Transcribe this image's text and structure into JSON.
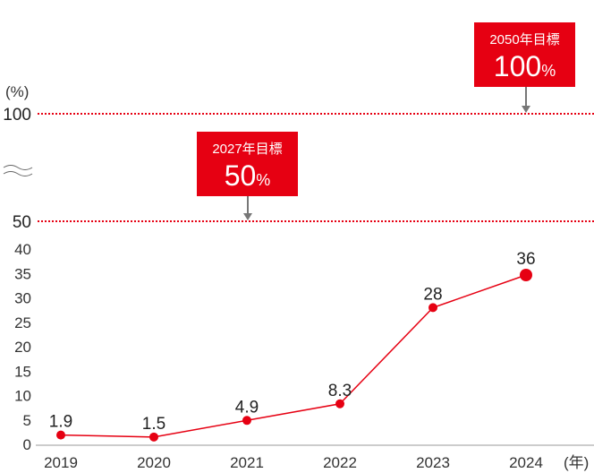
{
  "chart_data": {
    "type": "line",
    "ylabel": "(%)",
    "xlabel": "(年)",
    "categories": [
      "2019",
      "2020",
      "2021",
      "2022",
      "2023",
      "2024"
    ],
    "values": [
      1.9,
      1.5,
      4.9,
      8.3,
      28,
      36
    ],
    "data_labels": [
      "1.9",
      "1.5",
      "4.9",
      "8.3",
      "28",
      "36"
    ],
    "yticks": [
      0,
      5,
      10,
      15,
      20,
      25,
      30,
      35,
      40
    ],
    "ytick_labels": [
      "0",
      "5",
      "10",
      "15",
      "20",
      "25",
      "30",
      "35",
      "40"
    ],
    "upper_ticks": [
      "50",
      "100"
    ],
    "axis_break": true,
    "grid": false,
    "line_color": "#e60012",
    "targets": [
      {
        "label": "2027年目標",
        "value_text": "50",
        "unit": "%",
        "value": 50,
        "year": "2021"
      },
      {
        "label": "2050年目標",
        "value_text": "100",
        "unit": "%",
        "value": 100,
        "year": "2024"
      }
    ],
    "target_box_color": "#e60012"
  }
}
